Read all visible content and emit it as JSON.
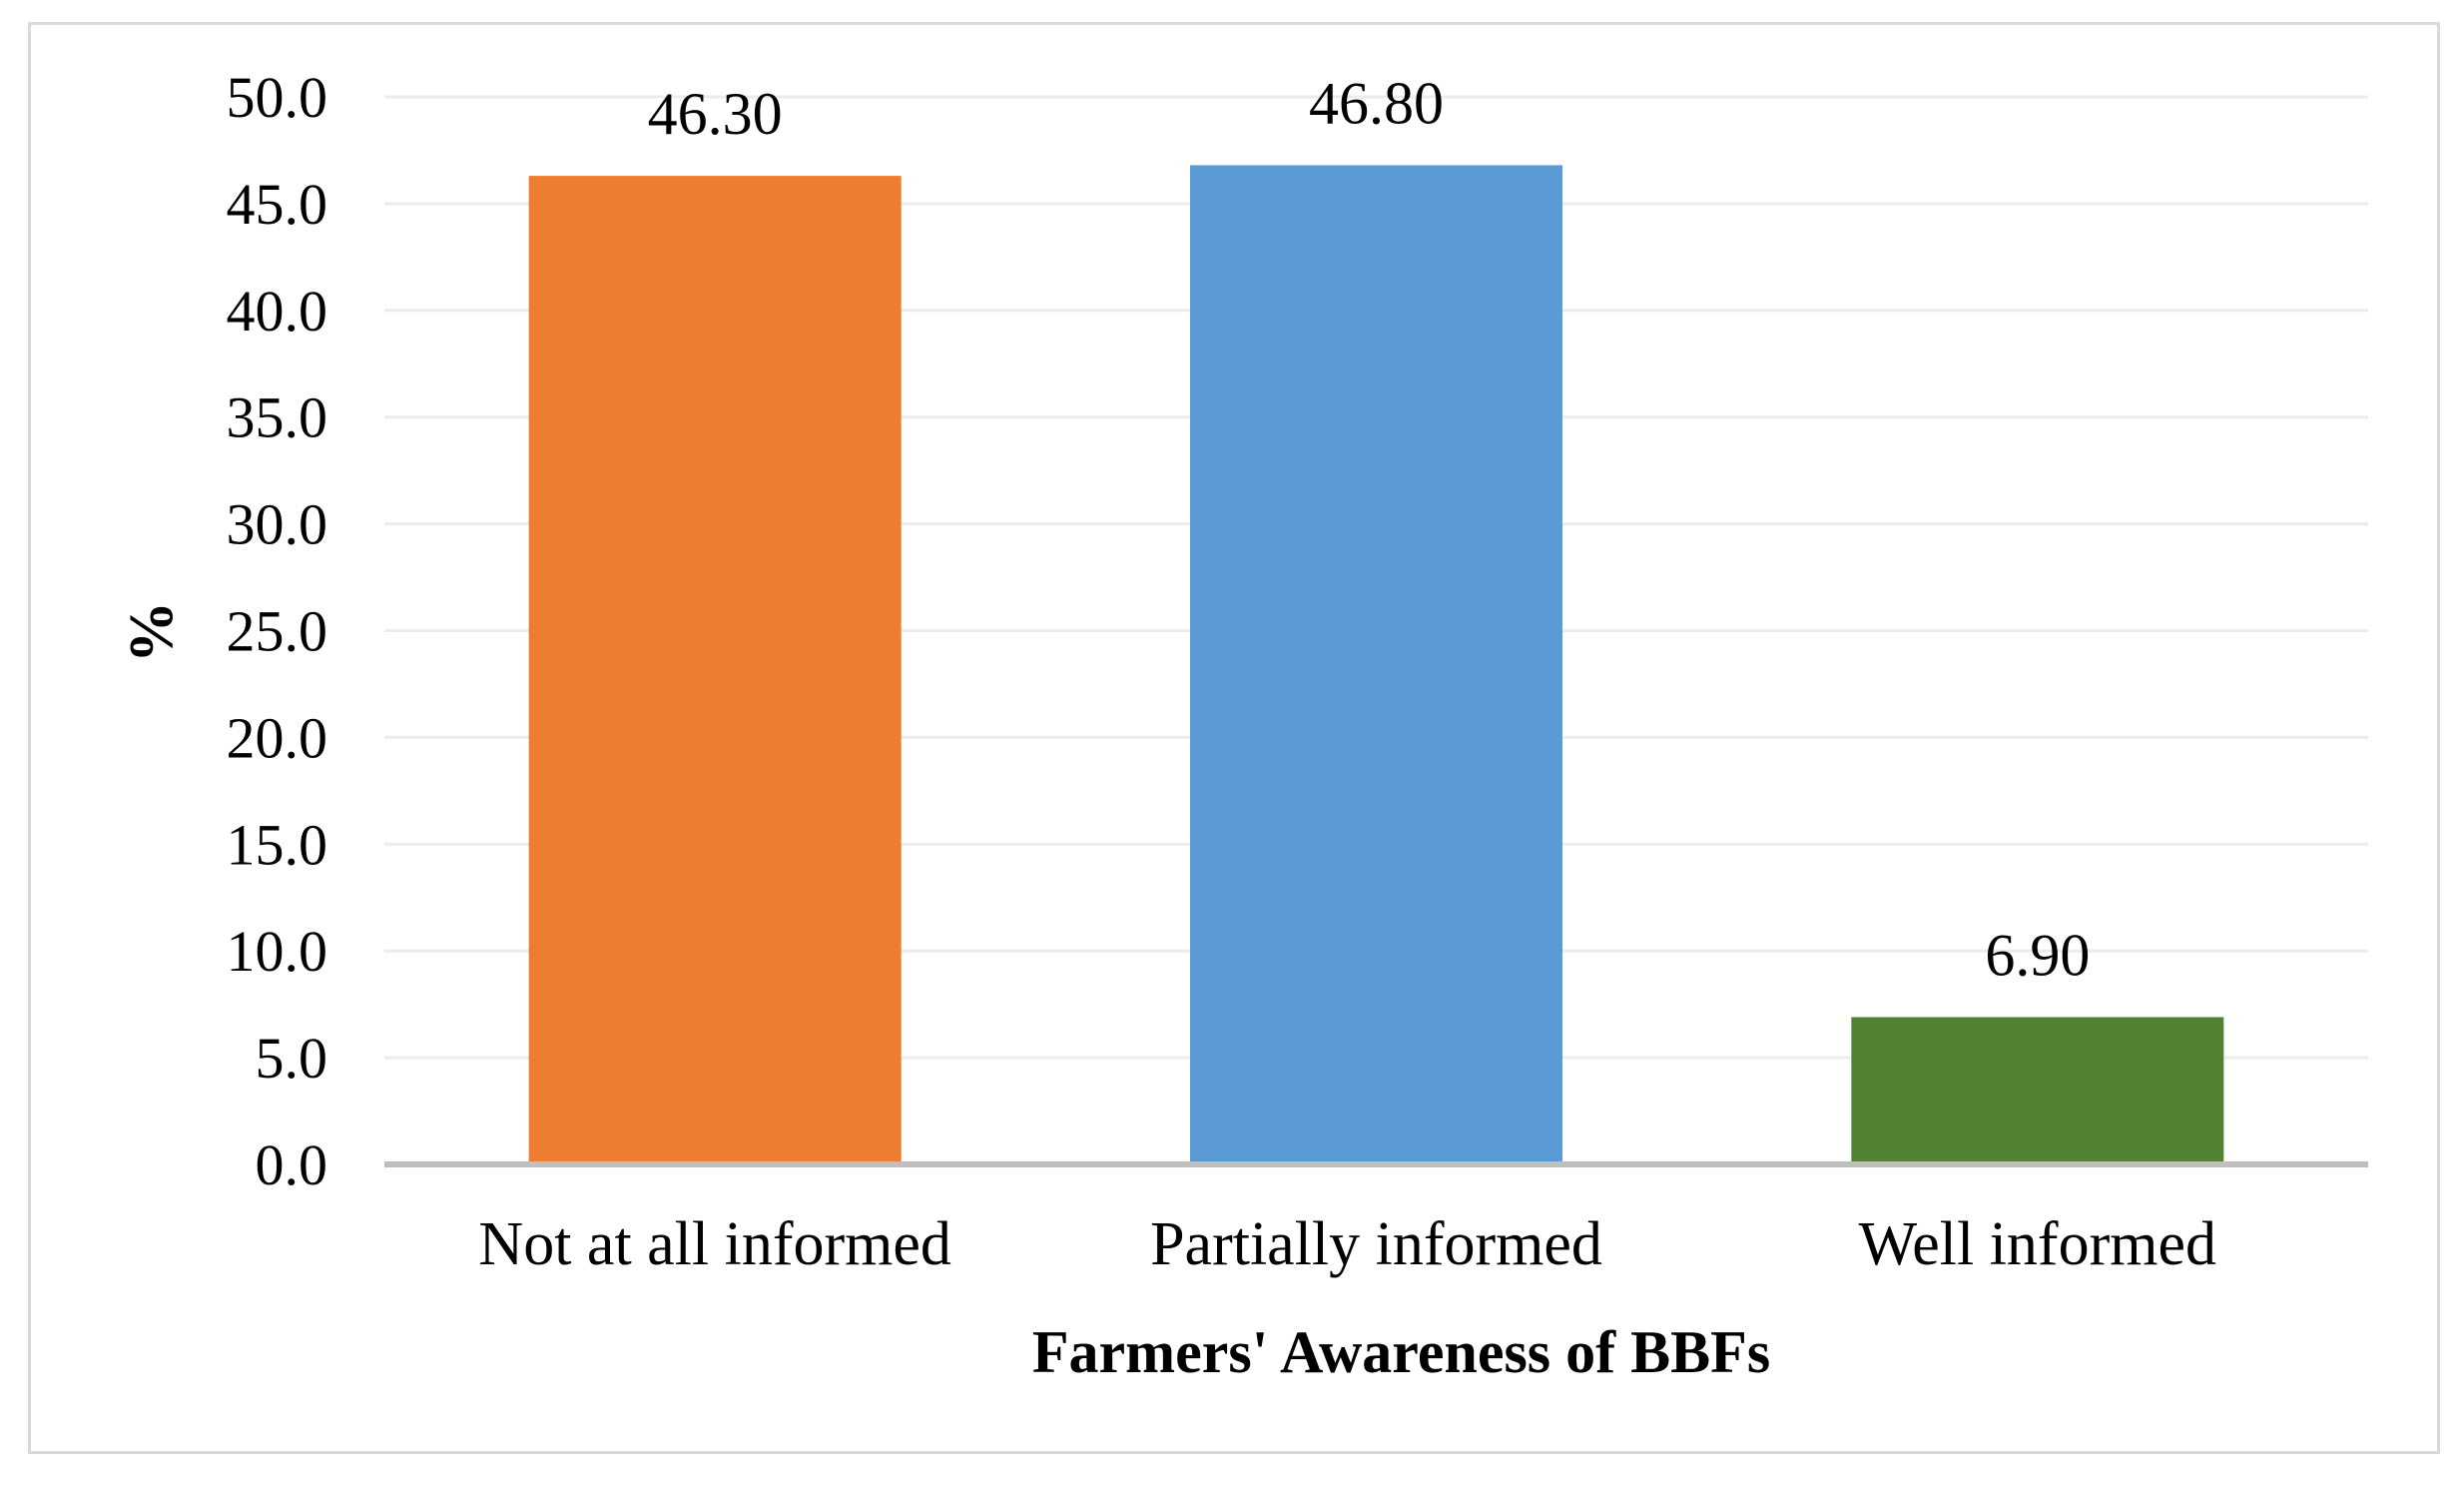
{
  "chart_data": {
    "type": "bar",
    "categories": [
      "Not at all informed",
      "Partially informed",
      "Well informed"
    ],
    "values": [
      46.3,
      46.8,
      6.9
    ],
    "data_labels": [
      "46.30",
      "46.80",
      "6.90"
    ],
    "colors": [
      "#ed7d31",
      "#5b9bd5",
      "#548235"
    ],
    "title": "",
    "xlabel": "Farmers' Awareness of BBFs",
    "ylabel": "%",
    "ylim": [
      0,
      50
    ],
    "ytick_step": 5,
    "yticks": [
      "0.0",
      "5.0",
      "10.0",
      "15.0",
      "20.0",
      "25.0",
      "30.0",
      "35.0",
      "40.0",
      "45.0",
      "50.0"
    ],
    "grid": true,
    "legend": "none"
  }
}
